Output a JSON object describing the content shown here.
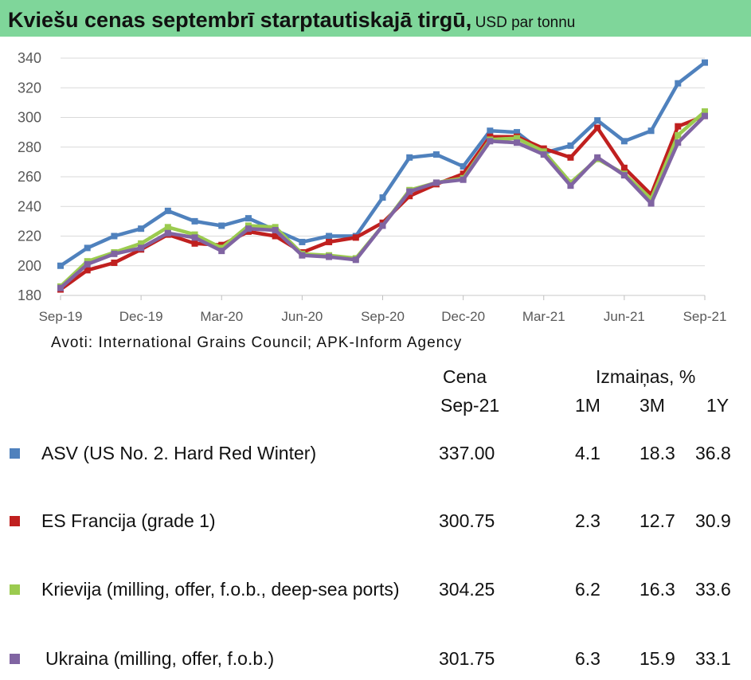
{
  "title": "Kviešu cenas septembrī starptautiskajā tirgū,",
  "unit": "USD par tonnu",
  "source": "Avoti: International Grains Council; APK-Inform Agency",
  "table": {
    "price_header": "Cena",
    "price_sub": "Sep-21",
    "change_header": "Izmaiņas, %",
    "col_1m": "1M",
    "col_3m": "3M",
    "col_1y": "1Y",
    "rows": [
      {
        "name": "ASV (US No. 2. Hard Red Winter)",
        "price": "337.00",
        "m1": "4.1",
        "m3": "18.3",
        "y1": "36.8",
        "color": "#4f81bd"
      },
      {
        "name": "ES Francija (grade 1)",
        "price": "300.75",
        "m1": "2.3",
        "m3": "12.7",
        "y1": "30.9",
        "color": "#c0201f"
      },
      {
        "name": "Krievija (milling, offer, f.o.b., deep-sea ports)",
        "price": "304.25",
        "m1": "6.2",
        "m3": "16.3",
        "y1": "33.6",
        "color": "#9bcb4f"
      },
      {
        "name": "Ukraina (milling, offer, f.o.b.)",
        "price": "301.75",
        "m1": "6.3",
        "m3": "15.9",
        "y1": "33.1",
        "color": "#8064a2"
      }
    ]
  },
  "chart_data": {
    "type": "line",
    "x": [
      "Sep-19",
      "Oct-19",
      "Nov-19",
      "Dec-19",
      "Jan-20",
      "Feb-20",
      "Mar-20",
      "Apr-20",
      "May-20",
      "Jun-20",
      "Jul-20",
      "Aug-20",
      "Sep-20",
      "Oct-20",
      "Nov-20",
      "Dec-20",
      "Jan-21",
      "Feb-21",
      "Mar-21",
      "Apr-21",
      "May-21",
      "Jun-21",
      "Jul-21",
      "Aug-21",
      "Sep-21"
    ],
    "x_tick_labels": [
      "Sep-19",
      "Dec-19",
      "Mar-20",
      "Jun-20",
      "Sep-20",
      "Dec-20",
      "Mar-21",
      "Jun-21",
      "Sep-21"
    ],
    "ylim": [
      180,
      340
    ],
    "yticks": [
      180,
      200,
      220,
      240,
      260,
      280,
      300,
      320,
      340
    ],
    "grid": true,
    "series": [
      {
        "name": "ASV (US No. 2. Hard Red Winter)",
        "color": "#4f81bd",
        "values": [
          200,
          212,
          220,
          225,
          237,
          230,
          227,
          232,
          224,
          216,
          220,
          220,
          246,
          273,
          275,
          267,
          291,
          290,
          276,
          281,
          298,
          284,
          291,
          323,
          337
        ]
      },
      {
        "name": "ES Francija (grade 1)",
        "color": "#c0201f",
        "values": [
          184,
          197,
          202,
          211,
          221,
          215,
          214,
          223,
          220,
          209,
          216,
          219,
          229,
          247,
          255,
          262,
          287,
          287,
          279,
          273,
          293,
          266,
          248,
          294,
          301
        ]
      },
      {
        "name": "Krievija (milling, offer, f.o.b., deep-sea ports)",
        "color": "#9bcb4f",
        "values": [
          186,
          203,
          209,
          215,
          226,
          221,
          212,
          227,
          226,
          208,
          207,
          205,
          227,
          251,
          256,
          259,
          285,
          286,
          277,
          256,
          272,
          262,
          245,
          288,
          304
        ]
      },
      {
        "name": "Ukraina (milling, offer, f.o.b.)",
        "color": "#8064a2",
        "values": [
          185,
          201,
          208,
          212,
          222,
          219,
          210,
          225,
          224,
          207,
          206,
          204,
          227,
          250,
          256,
          258,
          284,
          283,
          275,
          254,
          273,
          261,
          242,
          283,
          301
        ]
      }
    ]
  }
}
